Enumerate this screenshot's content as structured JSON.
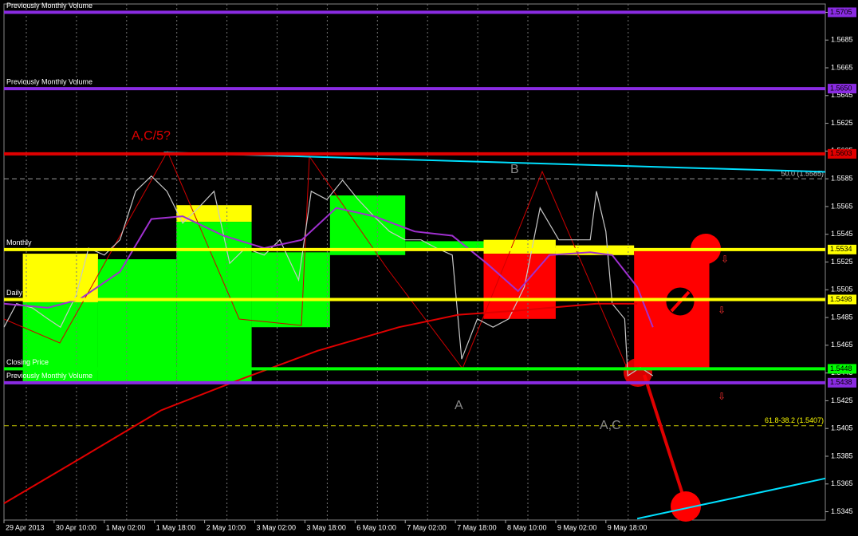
{
  "chart_data": {
    "type": "line",
    "grid": "x",
    "xlim": [
      0,
      262
    ],
    "ylim": [
      1.5339,
      1.5711
    ],
    "xticks": [
      {
        "value": 0,
        "label": "29 Apr 2013"
      },
      {
        "value": 16,
        "label": "30 Apr 10:00"
      },
      {
        "value": 32,
        "label": "1 May 02:00"
      },
      {
        "value": 48,
        "label": "1 May 18:00"
      },
      {
        "value": 64,
        "label": "2 May 10:00"
      },
      {
        "value": 80,
        "label": "3 May 02:00"
      },
      {
        "value": 96,
        "label": "3 May 18:00"
      },
      {
        "value": 112,
        "label": "6 May 10:00"
      },
      {
        "value": 128,
        "label": "7 May 02:00"
      },
      {
        "value": 144,
        "label": "7 May 18:00"
      },
      {
        "value": 160,
        "label": "8 May 10:00"
      },
      {
        "value": 176,
        "label": "9 May 02:00"
      },
      {
        "value": 192,
        "label": "9 May 18:00"
      }
    ],
    "yticks": [
      1.5705,
      1.5685,
      1.5665,
      1.5645,
      1.5625,
      1.5605,
      1.5585,
      1.5565,
      1.5545,
      1.5525,
      1.5505,
      1.5485,
      1.5465,
      1.5445,
      1.5425,
      1.5405,
      1.5385,
      1.5365,
      1.5345
    ],
    "zones": [
      {
        "color": "#ffff00",
        "x": [
          6,
          30
        ],
        "y": [
          1.5496,
          1.5531
        ]
      },
      {
        "color": "#00ff00",
        "x": [
          6,
          30
        ],
        "y": [
          1.5438,
          1.5496
        ]
      },
      {
        "color": "#00ff00",
        "x": [
          30,
          55
        ],
        "y": [
          1.5438,
          1.5527
        ]
      },
      {
        "color": "#ffff00",
        "x": [
          55,
          79
        ],
        "y": [
          1.5554,
          1.5566
        ]
      },
      {
        "color": "#00ff00",
        "x": [
          55,
          79
        ],
        "y": [
          1.5438,
          1.5554
        ]
      },
      {
        "color": "#00ff00",
        "x": [
          79,
          104
        ],
        "y": [
          1.5478,
          1.5532
        ]
      },
      {
        "color": "#00ff00",
        "x": [
          104,
          128
        ],
        "y": [
          1.553,
          1.5573
        ]
      },
      {
        "color": "#00ff00",
        "x": [
          128,
          153
        ],
        "y": [
          1.5535,
          1.554
        ]
      },
      {
        "color": "#ffff00",
        "x": [
          153,
          176
        ],
        "y": [
          1.5531,
          1.5541
        ]
      },
      {
        "color": "#ff0000",
        "x": [
          153,
          176
        ],
        "y": [
          1.5484,
          1.5531
        ]
      },
      {
        "color": "#ffff00",
        "x": [
          176,
          201
        ],
        "y": [
          1.553,
          1.5537
        ]
      },
      {
        "color": "#ff0000",
        "x": [
          201,
          225
        ],
        "y": [
          1.5449,
          1.5534
        ]
      }
    ],
    "series": [
      {
        "color": "#c8c8c8",
        "x": [
          0,
          4,
          9,
          14,
          18,
          23,
          27,
          32,
          37,
          42,
          47,
          52,
          57,
          62,
          67,
          72,
          77,
          83,
          88,
          94,
          98,
          103,
          108,
          113,
          118,
          123,
          128,
          133,
          138,
          143,
          146,
          151,
          156,
          161,
          166,
          171,
          177,
          182,
          187,
          189,
          192,
          194,
          198,
          199,
          203,
          207
        ],
        "values": [
          1.5478,
          1.5495,
          1.5492,
          1.5484,
          1.5478,
          1.5501,
          1.5535,
          1.553,
          1.5541,
          1.5576,
          1.5587,
          1.5576,
          1.5553,
          1.5564,
          1.5576,
          1.5524,
          1.5535,
          1.553,
          1.5541,
          1.5512,
          1.5576,
          1.557,
          1.5584,
          1.557,
          1.5558,
          1.5547,
          1.5541,
          1.5541,
          1.5535,
          1.553,
          1.5455,
          1.5484,
          1.5478,
          1.5484,
          1.5507,
          1.5564,
          1.5541,
          1.5541,
          1.5541,
          1.5576,
          1.5547,
          1.5495,
          1.5484,
          1.5443,
          1.5449,
          1.5443
        ]
      },
      {
        "color": "#e00000",
        "x": [
          0,
          24,
          50,
          75,
          100,
          126,
          145,
          164,
          189,
          202
        ],
        "values": [
          1.5351,
          1.5383,
          1.5418,
          1.544,
          1.5461,
          1.5478,
          1.5487,
          1.549,
          1.5495,
          1.5495
        ]
      },
      {
        "color": "#a030d0",
        "x": [
          0,
          14,
          24,
          37,
          47,
          57,
          70,
          83,
          95,
          106,
          118,
          131,
          143,
          154,
          164,
          174,
          187,
          194,
          202,
          207
        ],
        "values": [
          1.5495,
          1.5492,
          1.5498,
          1.5518,
          1.5556,
          1.5558,
          1.5544,
          1.5535,
          1.5541,
          1.5564,
          1.5558,
          1.5547,
          1.5544,
          1.5524,
          1.5504,
          1.553,
          1.5532,
          1.553,
          1.5507,
          1.5478
        ]
      }
    ],
    "trendlines": [
      {
        "color": "#00e0ff",
        "x": [
          51,
          262
        ],
        "y": [
          1.5604,
          1.559
        ]
      },
      {
        "color": "#00e0ff",
        "x": [
          202,
          262
        ],
        "y": [
          1.534,
          1.5369
        ]
      }
    ],
    "levels": [
      {
        "value": 1.5705,
        "label": "1.5705",
        "color": "#8a2be2",
        "caption": "Previously Monthly Volume"
      },
      {
        "value": 1.565,
        "label": "1.5650",
        "color": "#8a2be2",
        "caption": "Previously Monthly Volume"
      },
      {
        "value": 1.5603,
        "label": "1.5603",
        "color": "#e00000"
      },
      {
        "value": 1.5534,
        "label": "1.5534",
        "color": "#ffff00",
        "caption": "Monthly"
      },
      {
        "value": 1.5498,
        "label": "1.5498",
        "color": "#ffff00",
        "caption": "Daily"
      },
      {
        "value": 1.5448,
        "label": "1.5448",
        "color": "#00ff00",
        "caption": "Closing Price"
      },
      {
        "value": 1.5438,
        "label": "1.5438",
        "color": "#8a2be2",
        "caption": "Previously Monthly Volume"
      }
    ],
    "fib_levels": [
      {
        "value": 1.5585,
        "label": "50.0 (1.5585)"
      },
      {
        "value": 1.5407,
        "label": "61.8-38.2 (1.5407)"
      }
    ],
    "annotations": [
      "A,C/5?",
      "B",
      "A",
      "A,C"
    ]
  }
}
